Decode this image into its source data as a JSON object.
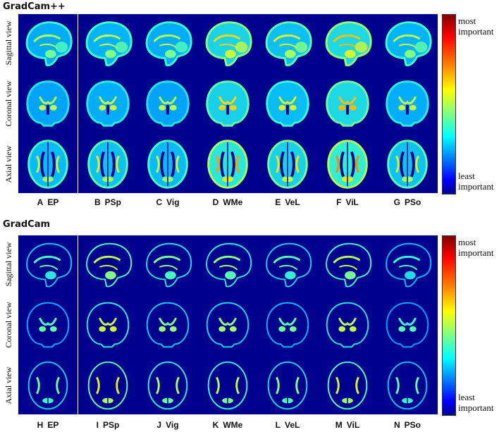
{
  "sections": [
    {
      "title": "GradCam++",
      "row_labels": [
        "Sagittal view",
        "Coronal view",
        "Axial view"
      ],
      "columns": [
        {
          "letter": "A",
          "name": "EP"
        },
        {
          "letter": "B",
          "name": "PSp"
        },
        {
          "letter": "C",
          "name": "Vig"
        },
        {
          "letter": "D",
          "name": "WMe"
        },
        {
          "letter": "E",
          "name": "VeL"
        },
        {
          "letter": "F",
          "name": "ViL"
        },
        {
          "letter": "G",
          "name": "PSo"
        }
      ],
      "colorbar": {
        "top": "most important",
        "bottom": "least important"
      }
    },
    {
      "title": "GradCam",
      "row_labels": [
        "Sagittal view",
        "Coronal view",
        "Axial view"
      ],
      "columns": [
        {
          "letter": "H",
          "name": "EP"
        },
        {
          "letter": "I",
          "name": "PSp"
        },
        {
          "letter": "J",
          "name": "Vig"
        },
        {
          "letter": "K",
          "name": "WMe"
        },
        {
          "letter": "L",
          "name": "VeL"
        },
        {
          "letter": "M",
          "name": "ViL"
        },
        {
          "letter": "N",
          "name": "PSo"
        }
      ],
      "colorbar": {
        "top": "most important",
        "bottom": "least important"
      }
    }
  ],
  "colors": {
    "background": "#00008f",
    "brain_low": "#0050e0",
    "brain_mid": "#00c8ff",
    "brain_high": "#60ff90",
    "hot": "#ffe000",
    "very_hot": "#ff4000"
  },
  "intensity": {
    "gradcampp": [
      0.55,
      0.6,
      0.55,
      0.85,
      0.7,
      0.9,
      0.6
    ],
    "gradcam": [
      0.25,
      0.6,
      0.4,
      0.45,
      0.3,
      0.55,
      0.2
    ]
  }
}
